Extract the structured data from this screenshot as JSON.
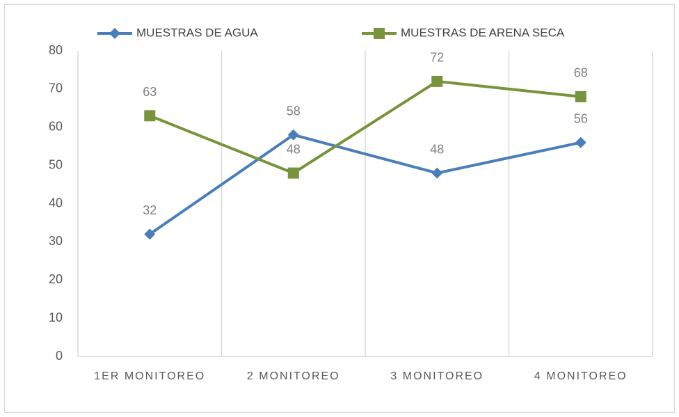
{
  "chart_data": {
    "type": "line",
    "categories": [
      "1ER MONITOREO",
      "2 MONITOREO",
      "3 MONITOREO",
      "4 MONITOREO"
    ],
    "series": [
      {
        "name": "MUESTRAS DE AGUA",
        "color": "#4a7ebb",
        "marker": "diamond",
        "values": [
          32,
          58,
          48,
          56
        ]
      },
      {
        "name": "MUESTRAS DE ARENA SECA",
        "color": "#77933c",
        "marker": "square",
        "values": [
          63,
          48,
          72,
          68
        ]
      }
    ],
    "ylim": [
      0,
      80
    ],
    "yticks": [
      0,
      10,
      20,
      30,
      40,
      50,
      60,
      70,
      80
    ],
    "grid": "x",
    "legend": "top",
    "data_labels": true
  }
}
